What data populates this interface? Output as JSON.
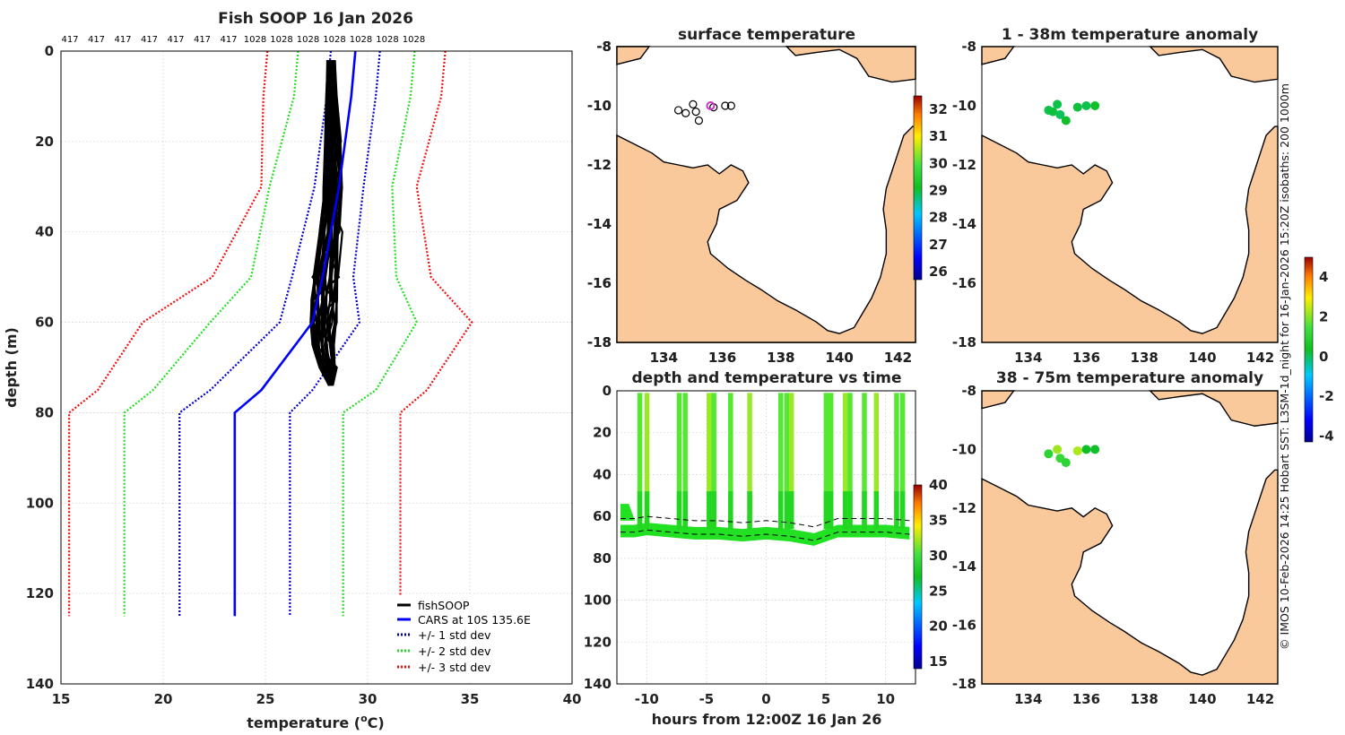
{
  "colors": {
    "land": "#f9c89b",
    "coast": "#000000",
    "fish": "#000000",
    "cars": "#0000ff",
    "sd1": "#0000cc",
    "sd2": "#22dd22",
    "sd3": "#ee1111"
  },
  "chart_data": [
    {
      "id": "profile",
      "type": "line",
      "title": "Fish SOOP 16 Jan 2026",
      "xlabel": "temperature (",
      "xlabel_sup": "o",
      "xlabel_tail": "C)",
      "ylabel": "depth (m)",
      "xlim": [
        15,
        40
      ],
      "ylim": [
        0,
        140
      ],
      "xticks": [
        15,
        20,
        25,
        30,
        35,
        40
      ],
      "yticks": [
        0,
        20,
        40,
        60,
        80,
        100,
        120,
        140
      ],
      "top_labels": [
        "417",
        "417",
        "417",
        "417",
        "417",
        "417",
        "417",
        "1028",
        "1028",
        "1028",
        "1028",
        "1028",
        "1028",
        "1028"
      ],
      "legend": [
        "fishSOOP",
        "CARS at 10S 135.6E",
        "+/- 1 std dev",
        "+/- 2 std dev",
        "+/- 3 std dev"
      ],
      "depths": [
        0,
        10,
        30,
        50,
        60,
        75,
        80,
        125
      ],
      "cars": [
        29.4,
        29.2,
        28.6,
        27.8,
        27.3,
        24.8,
        23.5,
        23.5
      ],
      "sd1_minus": [
        28.2,
        28.0,
        27.4,
        26.3,
        25.7,
        22.3,
        20.8,
        20.8
      ],
      "sd1_plus": [
        30.6,
        30.4,
        29.8,
        29.3,
        29.6,
        27.3,
        26.2,
        26.2
      ],
      "sd2_minus": [
        26.6,
        26.4,
        25.2,
        24.3,
        22.3,
        19.5,
        18.1,
        18.1
      ],
      "sd2_plus": [
        32.3,
        32.1,
        31.2,
        31.4,
        32.4,
        30.4,
        28.8,
        28.8
      ],
      "sd3_minus": [
        25.1,
        24.9,
        24.8,
        22.4,
        19.0,
        16.8,
        15.4,
        15.4
      ],
      "sd3_plus": [
        33.8,
        33.6,
        32.4,
        33.1,
        35.1,
        32.9,
        31.6,
        31.6
      ],
      "fish_depths": [
        2,
        10,
        20,
        30,
        40,
        50,
        55,
        60,
        65,
        70,
        74
      ],
      "fish_min": [
        28.0,
        27.95,
        27.9,
        27.8,
        27.6,
        27.3,
        27.2,
        27.2,
        27.3,
        27.6,
        28.1
      ],
      "fish_max": [
        28.4,
        28.5,
        28.7,
        28.8,
        28.8,
        28.6,
        28.6,
        28.5,
        28.4,
        28.5,
        28.3
      ]
    },
    {
      "id": "sst",
      "type": "heatmap",
      "title": "surface temperature",
      "xlim": [
        132.4,
        142.6
      ],
      "ylim": [
        -18,
        -8
      ],
      "xticks": [
        134,
        136,
        138,
        140,
        142
      ],
      "yticks": [
        -8,
        -10,
        -12,
        -14,
        -16,
        -18
      ],
      "colorbar": {
        "range": [
          25.7,
          32.5
        ],
        "ticks": [
          26,
          27,
          28,
          29,
          30,
          31,
          32
        ]
      }
    },
    {
      "id": "depthtime",
      "type": "scatter",
      "title": "depth and temperature vs time",
      "xlabel": "hours from 12:00Z 16 Jan 26",
      "xlim": [
        -12.5,
        12.5
      ],
      "ylim": [
        0,
        140
      ],
      "xticks": [
        -10,
        -5,
        0,
        5,
        10
      ],
      "yticks": [
        0,
        20,
        40,
        60,
        80,
        100,
        120,
        140
      ],
      "colorbar": {
        "range": [
          14,
          40
        ],
        "ticks": [
          15,
          20,
          25,
          30,
          35,
          40
        ]
      },
      "casts": [
        -10.6,
        -10.0,
        -7.3,
        -6.8,
        -4.8,
        -4.4,
        -3.0,
        -1.4,
        1.2,
        1.7,
        2.1,
        5.0,
        5.4,
        6.6,
        7.0,
        8.2,
        9.2,
        10.9,
        11.4
      ],
      "bottom_track": [
        [
          -12.2,
          66
        ],
        [
          -11.0,
          66
        ],
        [
          -10.0,
          65
        ],
        [
          -8.0,
          66
        ],
        [
          -6.0,
          67
        ],
        [
          -4.0,
          67
        ],
        [
          -2.0,
          68
        ],
        [
          0.0,
          67
        ],
        [
          2.0,
          68
        ],
        [
          4.0,
          70
        ],
        [
          5.0,
          68
        ],
        [
          6.0,
          66
        ],
        [
          8.0,
          66
        ],
        [
          10.0,
          66
        ],
        [
          12.0,
          67
        ]
      ]
    },
    {
      "id": "anom1",
      "type": "scatter",
      "title": "1 - 38m temperature anomaly",
      "xlim": [
        132.4,
        142.6
      ],
      "ylim": [
        -18,
        -8
      ],
      "xticks": [
        134,
        136,
        138,
        140,
        142
      ],
      "yticks": [
        -8,
        -10,
        -12,
        -14,
        -16,
        -18
      ],
      "points": [
        [
          134.7,
          -10.15,
          0.1
        ],
        [
          134.85,
          -10.2,
          0.2
        ],
        [
          135.0,
          -9.95,
          0.1
        ],
        [
          135.1,
          -10.3,
          0.0
        ],
        [
          135.3,
          -10.5,
          0.3
        ],
        [
          135.7,
          -10.05,
          0.2
        ],
        [
          136.0,
          -10.0,
          0.1
        ],
        [
          136.3,
          -10.0,
          0.3
        ]
      ]
    },
    {
      "id": "anom2",
      "type": "scatter",
      "title": "38 - 75m temperature anomaly",
      "xlim": [
        132.4,
        142.6
      ],
      "ylim": [
        -18,
        -8
      ],
      "xticks": [
        134,
        136,
        138,
        140,
        142
      ],
      "yticks": [
        -8,
        -10,
        -12,
        -14,
        -16,
        -18
      ],
      "points": [
        [
          134.7,
          -10.15,
          1.0
        ],
        [
          135.0,
          -10.0,
          2.2
        ],
        [
          135.1,
          -10.3,
          1.2
        ],
        [
          135.3,
          -10.45,
          1.0
        ],
        [
          135.7,
          -10.05,
          2.3
        ],
        [
          136.0,
          -10.0,
          0.3
        ],
        [
          136.3,
          -10.0,
          0.3
        ]
      ],
      "colorbar": {
        "range": [
          -4.3,
          5.0
        ],
        "ticks": [
          -4,
          -2,
          0,
          2,
          4
        ]
      }
    }
  ],
  "side_text": "© IMOS 10-Feb-2026 14:25 Hobart SST: L3SM-1d_night for 16-Jan-2026 15:20Z isobaths: 200  1000m"
}
